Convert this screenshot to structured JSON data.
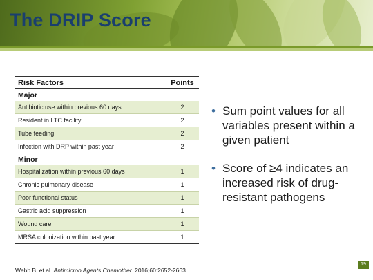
{
  "header": {
    "title": "The DRIP Score"
  },
  "table": {
    "columns": [
      "Risk Factors",
      "Points"
    ],
    "sections": [
      {
        "name": "Major",
        "rows": [
          {
            "factor": "Antibiotic use within previous 60 days",
            "points": "2"
          },
          {
            "factor": "Resident in LTC facility",
            "points": "2"
          },
          {
            "factor": "Tube feeding",
            "points": "2"
          },
          {
            "factor": "Infection with DRP within past year",
            "points": "2"
          }
        ]
      },
      {
        "name": "Minor",
        "rows": [
          {
            "factor": "Hospitalization within previous 60 days",
            "points": "1"
          },
          {
            "factor": "Chronic pulmonary disease",
            "points": "1"
          },
          {
            "factor": "Poor functional status",
            "points": "1"
          },
          {
            "factor": "Gastric acid suppression",
            "points": "1"
          },
          {
            "factor": "Wound care",
            "points": "1"
          },
          {
            "factor": "MRSA colonization within past year",
            "points": "1"
          }
        ]
      }
    ]
  },
  "bullets": [
    "Sum point values for all variables present within a given patient",
    "Score of ≥4 indicates an increased risk of drug-resistant pathogens"
  ],
  "citation": {
    "authors": "Webb B, et al. ",
    "journal": "Antimicrob Agents Chemother.",
    "details": " 2016;60:2652-2663."
  },
  "slide_number": "19",
  "colors": {
    "title": "#1a3f6e",
    "row_shade": "#e6eed1",
    "accent_green": "#5c7d1f",
    "bullet": "#3e6e9e"
  }
}
